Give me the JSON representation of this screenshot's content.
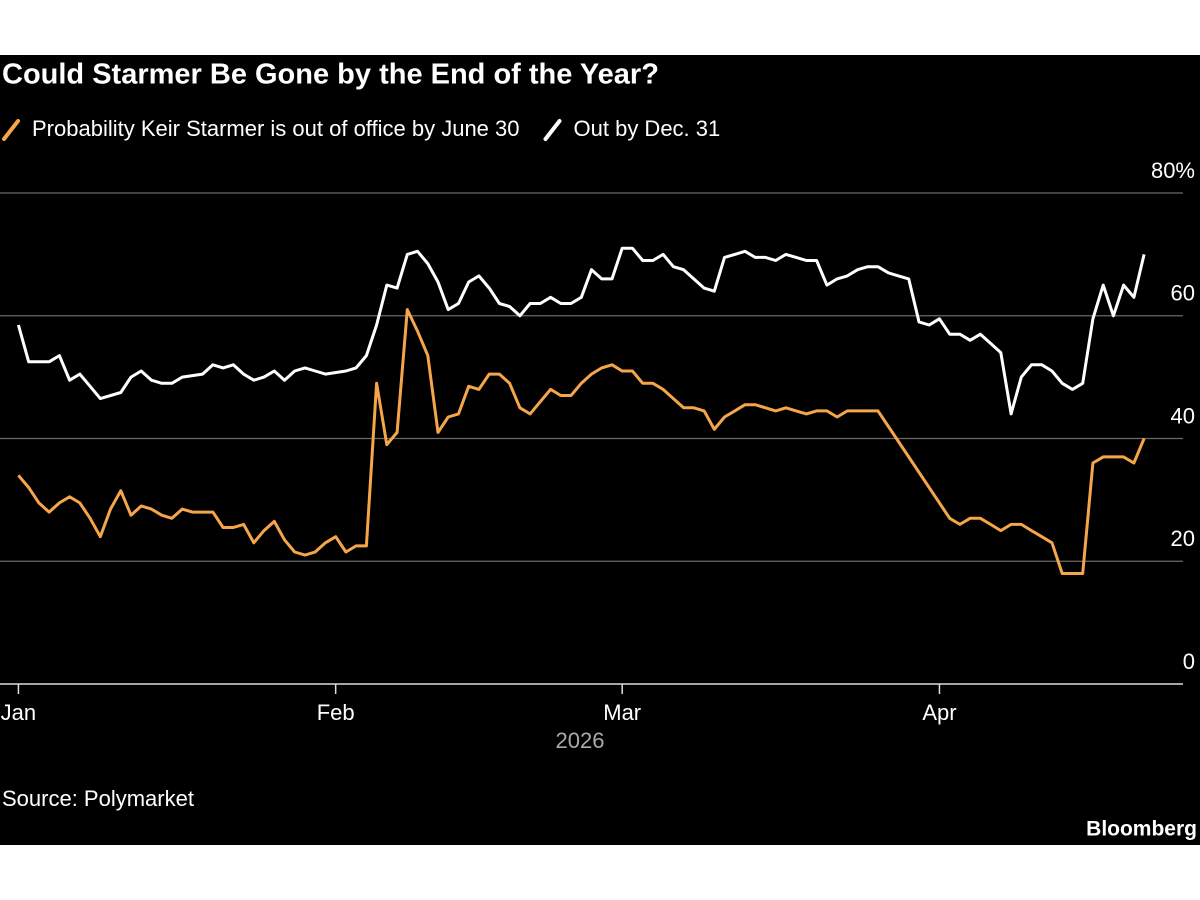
{
  "chart_data": {
    "type": "line",
    "title": "Could Starmer Be Gone by the End of the Year?",
    "x_label": "2026",
    "source": "Source: Polymarket",
    "credit": "Bloomberg",
    "xlim": [
      -1.8,
      113.8
    ],
    "xticks": [
      {
        "value": 0,
        "label": "Jan"
      },
      {
        "value": 31,
        "label": "Feb"
      },
      {
        "value": 59,
        "label": "Mar"
      },
      {
        "value": 90,
        "label": "Apr"
      }
    ],
    "ylim": [
      0,
      80
    ],
    "yticks": [
      0,
      20,
      40,
      60,
      {
        "value": 80,
        "label": "80%"
      }
    ],
    "grid": true,
    "series": [
      {
        "name": "Probability Keir Starmer is out of office by June 30",
        "color": "#f5a54a",
        "x": [
          0,
          1,
          2,
          3,
          4,
          5,
          6,
          7,
          8,
          9,
          10,
          11,
          12,
          13,
          14,
          15,
          16,
          17,
          18,
          19,
          20,
          21,
          22,
          23,
          24,
          25,
          26,
          27,
          28,
          29,
          30,
          31,
          32,
          33,
          34,
          35,
          36,
          37,
          38,
          39,
          40,
          41,
          42,
          43,
          44,
          45,
          46,
          47,
          48,
          49,
          50,
          51,
          52,
          53,
          54,
          55,
          56,
          57,
          58,
          59,
          60,
          61,
          62,
          63,
          64,
          65,
          66,
          67,
          68,
          69,
          70,
          71,
          72,
          73,
          74,
          75,
          76,
          77,
          78,
          79,
          80,
          81,
          82,
          83,
          84,
          91,
          92,
          93,
          94,
          95,
          96,
          97,
          98,
          99,
          100,
          101,
          102,
          103,
          104,
          105,
          106,
          107,
          108,
          109,
          110
        ],
        "values": [
          34,
          32,
          29.5,
          28,
          29.5,
          30.5,
          29.5,
          27,
          24,
          28.5,
          31.5,
          27.5,
          29,
          28.5,
          27.5,
          27,
          28.5,
          28,
          28,
          28,
          25.5,
          25.5,
          26,
          23,
          25,
          26.5,
          23.5,
          21.5,
          21,
          21.5,
          23,
          24,
          21.5,
          22.5,
          22.5,
          49,
          39,
          41,
          61,
          57.5,
          53.5,
          41,
          43.5,
          44,
          48.5,
          48,
          50.5,
          50.5,
          49,
          45,
          44,
          46,
          48,
          47,
          47,
          49,
          50.5,
          51.5,
          52,
          51,
          51,
          49,
          49,
          48,
          46.5,
          45,
          45,
          44.5,
          41.5,
          43.5,
          44.5,
          45.5,
          45.5,
          45,
          44.5,
          45,
          44.5,
          44,
          44.5,
          44.5,
          43.5,
          44.5,
          44.5,
          44.5,
          44.5,
          27,
          26,
          27,
          27,
          26,
          25,
          26,
          26,
          25,
          24,
          23,
          18,
          18,
          18,
          36,
          37,
          37,
          37,
          36,
          40
        ]
      },
      {
        "name": "Out by Dec. 31",
        "color": "#ffffff",
        "x": [
          0,
          1,
          3,
          4,
          5,
          6,
          7,
          8,
          10,
          11,
          12,
          13,
          14,
          15,
          16,
          18,
          19,
          20,
          21,
          22,
          23,
          24,
          25,
          26,
          27,
          28,
          29,
          30,
          32,
          33,
          34,
          35,
          36,
          37,
          38,
          39,
          40,
          41,
          42,
          43,
          44,
          45,
          46,
          47,
          48,
          49,
          50,
          51,
          52,
          53,
          54,
          55,
          56,
          57,
          58,
          59,
          60,
          61,
          62,
          63,
          64,
          65,
          66,
          67,
          68,
          69,
          70,
          71,
          72,
          73,
          74,
          75,
          76,
          77,
          78,
          79,
          80,
          81,
          82,
          83,
          84,
          85,
          86,
          87,
          88,
          89,
          90,
          91,
          92,
          93,
          94,
          95,
          96,
          97,
          98,
          99,
          100,
          101,
          102,
          103,
          104,
          105,
          106,
          107,
          108,
          109,
          110
        ],
        "values": [
          58.5,
          52.5,
          52.5,
          53.5,
          49.5,
          50.5,
          48.5,
          46.5,
          47.5,
          50,
          51,
          49.5,
          49,
          49,
          50,
          50.5,
          52,
          51.5,
          52,
          50.5,
          49.5,
          50,
          51,
          49.5,
          51,
          51.5,
          51,
          50.5,
          51,
          51.5,
          53.5,
          58.5,
          65,
          64.5,
          70,
          70.5,
          68.5,
          65.5,
          61,
          62,
          65.5,
          66.5,
          64.5,
          62,
          61.5,
          60,
          62,
          62,
          63,
          62,
          62,
          63,
          67.5,
          66,
          66,
          71,
          71,
          69,
          69,
          70,
          68,
          67.5,
          66,
          64.5,
          64,
          69.5,
          70,
          70.5,
          69.5,
          69.5,
          69,
          70,
          69.5,
          69,
          69,
          65,
          66,
          66.5,
          67.5,
          68,
          68,
          67,
          66.5,
          66,
          59,
          58.5,
          59.5,
          57,
          57,
          56,
          57,
          55.5,
          54,
          44,
          50,
          52,
          52,
          51,
          49,
          48,
          49,
          59.5,
          65,
          60,
          65,
          63,
          70
        ]
      }
    ]
  }
}
